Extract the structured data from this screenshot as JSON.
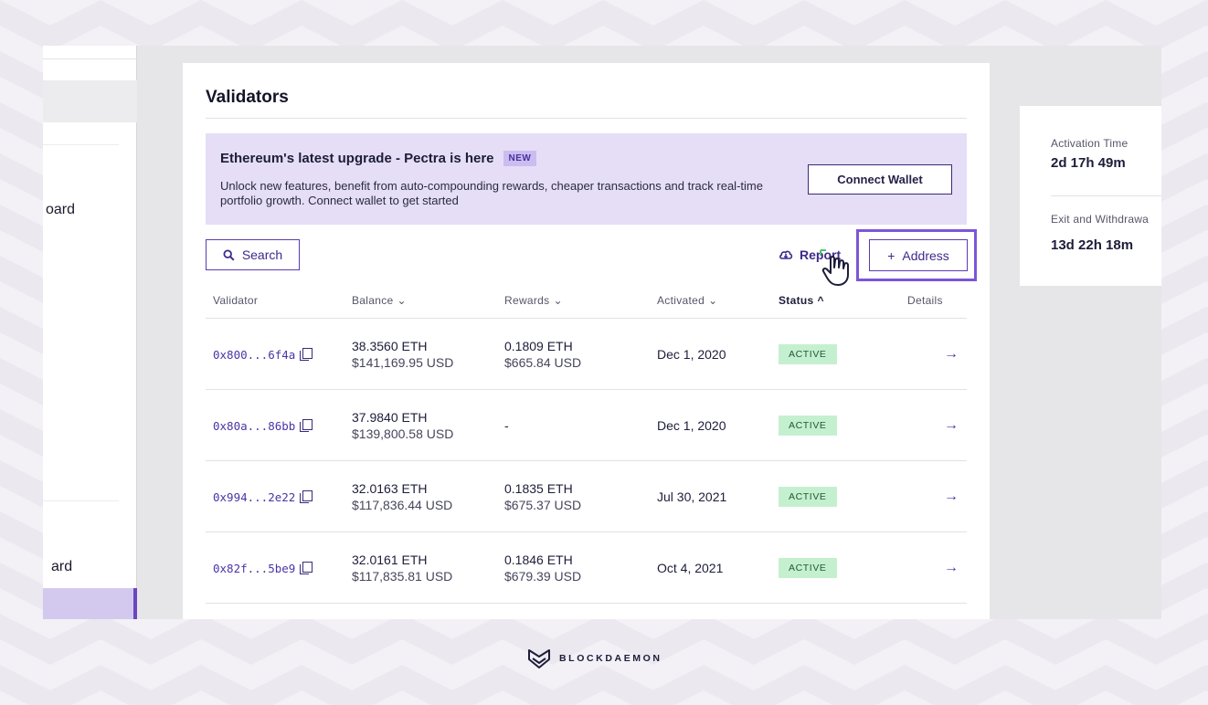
{
  "sidebar": {
    "items": [
      {
        "label": "oard"
      },
      {
        "label": "ard"
      }
    ]
  },
  "main": {
    "title": "Validators",
    "banner": {
      "title": "Ethereum's latest upgrade - Pectra is here",
      "badge": "NEW",
      "text": "Unlock new features, benefit from auto-compounding rewards, cheaper transactions and track real-time portfolio growth. Connect wallet to get started",
      "button": "Connect Wallet"
    },
    "toolbar": {
      "search_label": "Search",
      "report_label": "Report",
      "add_address_label": "Address"
    },
    "table": {
      "columns": {
        "validator": "Validator",
        "balance": "Balance",
        "rewards": "Rewards",
        "activated": "Activated",
        "status": "Status",
        "details": "Details"
      },
      "rows": [
        {
          "address": "0x800...6f4a",
          "balance_eth": "38.3560 ETH",
          "balance_usd": "$141,169.95 USD",
          "rewards_eth": "0.1809 ETH",
          "rewards_usd": "$665.84 USD",
          "activated": "Dec 1, 2020",
          "status": "ACTIVE"
        },
        {
          "address": "0x80a...86bb",
          "balance_eth": "37.9840 ETH",
          "balance_usd": "$139,800.58 USD",
          "rewards_eth": "-",
          "rewards_usd": "",
          "activated": "Dec 1, 2020",
          "status": "ACTIVE"
        },
        {
          "address": "0x994...2e22",
          "balance_eth": "32.0163 ETH",
          "balance_usd": "$117,836.44 USD",
          "rewards_eth": "0.1835 ETH",
          "rewards_usd": "$675.37 USD",
          "activated": "Jul 30, 2021",
          "status": "ACTIVE"
        },
        {
          "address": "0x82f...5be9",
          "balance_eth": "32.0161 ETH",
          "balance_usd": "$117,835.81 USD",
          "rewards_eth": "0.1846 ETH",
          "rewards_usd": "$679.39 USD",
          "activated": "Oct 4, 2021",
          "status": "ACTIVE"
        }
      ]
    }
  },
  "right_panel": {
    "activation_label": "Activation Time",
    "activation_value": "2d 17h 49m",
    "exit_label": "Exit and Withdrawa",
    "exit_value": "13d 22h 18m"
  },
  "footer": {
    "brand": "BLOCKDAEMON"
  },
  "colors": {
    "accent": "#5a3bb0",
    "banner_bg": "#e5def6",
    "status_active_bg": "#c5f0cf",
    "highlight": "#7c55d8"
  }
}
